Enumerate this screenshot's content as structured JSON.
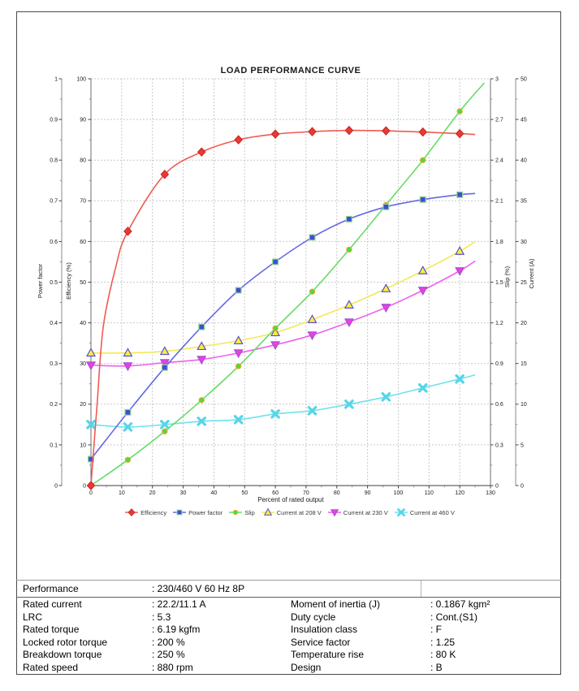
{
  "chart_data": {
    "type": "line",
    "title": "LOAD PERFORMANCE CURVE",
    "xlabel": "Percent of rated output",
    "xlim": [
      0,
      130
    ],
    "x_tick_step": 10,
    "x_minor_step": 5,
    "grid": true,
    "legend_position": "bottom",
    "x": [
      0,
      12,
      24,
      36,
      48,
      60,
      72,
      84,
      96,
      108,
      120
    ],
    "axes": [
      {
        "id": "pf",
        "title": "Power factor",
        "side": "left",
        "position": "outer",
        "range": [
          0,
          1
        ],
        "tick_step": 0.1
      },
      {
        "id": "eff",
        "title": "Efficiency (%)",
        "side": "left",
        "position": "inner",
        "range": [
          0,
          100
        ],
        "tick_step": 10
      },
      {
        "id": "slip",
        "title": "Slip (%)",
        "side": "right",
        "position": "inner",
        "range": [
          0,
          3
        ],
        "tick_step": 0.3
      },
      {
        "id": "cur",
        "title": "Current (A)",
        "side": "right",
        "position": "outer",
        "range": [
          0,
          50
        ],
        "tick_step": 5
      }
    ],
    "series": [
      {
        "name": "Efficiency",
        "axis": "eff",
        "marker": "diamond",
        "line_color": "#f05a52",
        "fill": "#e93a33",
        "edge": "#c62320",
        "values": [
          0,
          62.5,
          76.5,
          82,
          85,
          86.4,
          87,
          87.3,
          87.2,
          86.9,
          86.5
        ],
        "lead_points": [
          [
            2,
            20
          ],
          [
            4,
            39
          ],
          [
            8,
            53.5
          ]
        ],
        "tail_point": [
          125,
          86.3
        ]
      },
      {
        "name": "Power factor",
        "axis": "pf",
        "marker": "square",
        "line_color": "#6468e4",
        "fill": "#3c4ed6",
        "edge": "#92d492",
        "values": [
          0.065,
          0.18,
          0.29,
          0.39,
          0.48,
          0.55,
          0.61,
          0.655,
          0.685,
          0.703,
          0.715
        ],
        "tail_point": [
          125,
          0.718
        ]
      },
      {
        "name": "Slip",
        "axis": "slip",
        "marker": "circle",
        "line_color": "#67dc67",
        "fill": "#3de23d",
        "edge": "#f0a231",
        "values": [
          0,
          0.19,
          0.4,
          0.63,
          0.88,
          1.16,
          1.43,
          1.74,
          2.07,
          2.4,
          2.76
        ],
        "tail_point": [
          128,
          2.97
        ]
      },
      {
        "name": "Current at 208 V",
        "axis": "cur",
        "marker": "triangle-up",
        "line_color": "#f2e858",
        "fill": "#fcee3d",
        "edge": "#5a50d2",
        "values": [
          16.3,
          16.3,
          16.5,
          17.1,
          17.8,
          18.8,
          20.4,
          22.2,
          24.2,
          26.4,
          28.8
        ],
        "tail_point": [
          125,
          30
        ]
      },
      {
        "name": "Current at 230 V",
        "axis": "cur",
        "marker": "triangle-down",
        "line_color": "#ee60ee",
        "fill": "#ee3de4",
        "edge": "#a44fd6",
        "values": [
          14.8,
          14.7,
          15.1,
          15.5,
          16.3,
          17.3,
          18.5,
          20.1,
          21.9,
          24,
          26.4
        ],
        "tail_point": [
          125,
          27.6
        ]
      },
      {
        "name": "Current at 460 V",
        "axis": "cur",
        "marker": "x",
        "line_color": "#6fe1ec",
        "fill": "#56d5e8",
        "edge": "#56d5e8",
        "values": [
          7.5,
          7.2,
          7.5,
          7.9,
          8.1,
          8.8,
          9.2,
          10,
          10.9,
          12,
          13.1
        ],
        "tail_point": [
          125,
          13.6
        ]
      }
    ]
  },
  "table": {
    "performance": {
      "label": "Performance",
      "value": ": 230/460 V 60 Hz 8P"
    },
    "left_rows": [
      {
        "label": "Rated current",
        "value": ": 22.2/11.1 A"
      },
      {
        "label": "LRC",
        "value": ": 5.3"
      },
      {
        "label": "Rated torque",
        "value": ": 6.19 kgfm"
      },
      {
        "label": "Locked rotor torque",
        "value": ": 200 %"
      },
      {
        "label": "Breakdown torque",
        "value": ": 250 %"
      },
      {
        "label": "Rated speed",
        "value": ": 880 rpm"
      }
    ],
    "right_rows": [
      {
        "label": "Moment of inertia (J)",
        "value": ": 0.1867 kgm²"
      },
      {
        "label": "Duty cycle",
        "value": ": Cont.(S1)"
      },
      {
        "label": "Insulation class",
        "value": ": F"
      },
      {
        "label": "Service factor",
        "value": ": 1.25"
      },
      {
        "label": "Temperature rise",
        "value": ": 80 K"
      },
      {
        "label": "Design",
        "value": ": B"
      }
    ]
  }
}
